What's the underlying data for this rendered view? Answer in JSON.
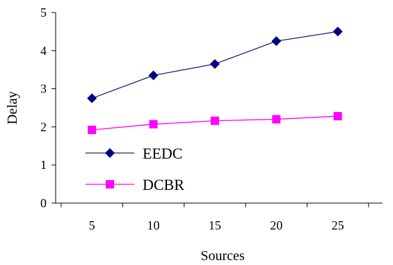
{
  "chart_data": {
    "type": "line",
    "title": "",
    "xlabel": "Sources",
    "ylabel": "Delay",
    "x": [
      5,
      10,
      15,
      20,
      25
    ],
    "x_tick_labels": [
      "5",
      "10",
      "15",
      "20",
      "25"
    ],
    "ylim": [
      0,
      5
    ],
    "y_ticks": [
      0,
      1,
      2,
      3,
      4,
      5
    ],
    "y_tick_labels": [
      "0",
      "1",
      "2",
      "3",
      "4",
      "5"
    ],
    "grid": false,
    "legend_position": "lower-left",
    "series": [
      {
        "name": "EEDC",
        "values": [
          2.75,
          3.35,
          3.65,
          4.25,
          4.5
        ],
        "color": "#1f1f7a",
        "marker": "diamond",
        "marker_color": "#000080"
      },
      {
        "name": "DCBR",
        "values": [
          1.92,
          2.07,
          2.16,
          2.2,
          2.28
        ],
        "color": "#ff00ff",
        "marker": "square",
        "marker_color": "#ff00ff"
      }
    ]
  }
}
